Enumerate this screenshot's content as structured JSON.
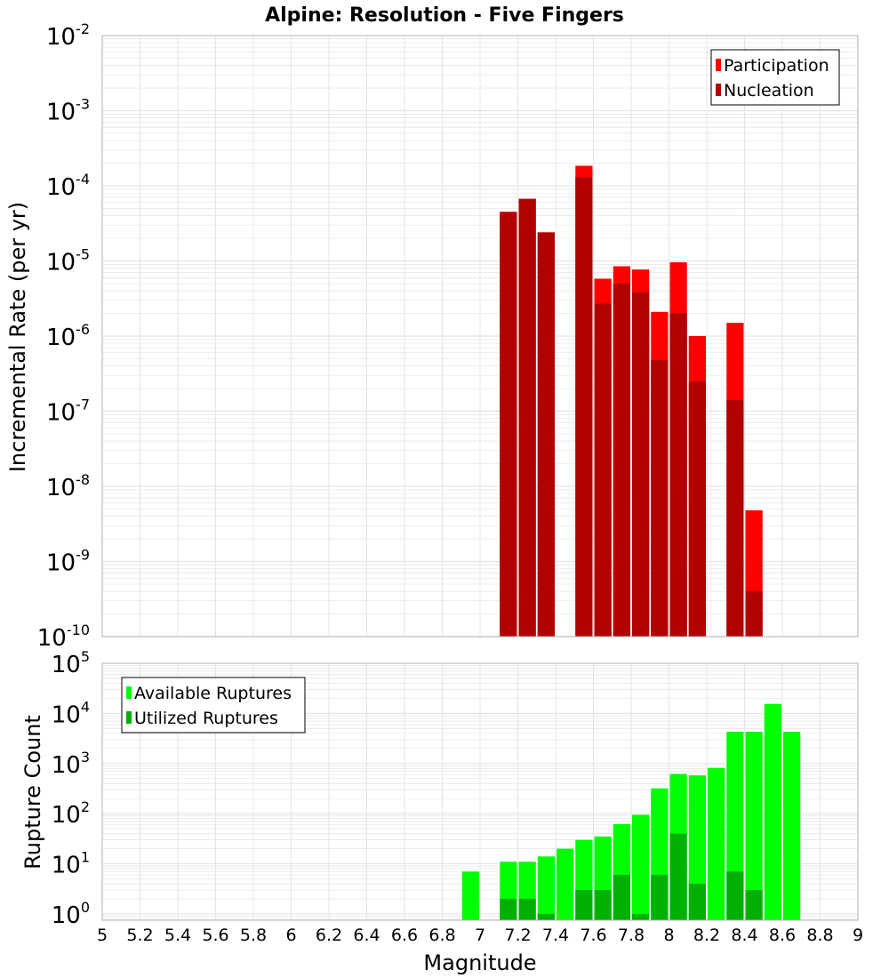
{
  "title": "Alpine: Resolution - Five Fingers",
  "colors": {
    "participation": "#ff0000",
    "nucleation": "#b00000",
    "available": "#00ff00",
    "utilized": "#00b000",
    "grid": "#e4e4e4",
    "frame": "#b0b0b0"
  },
  "chart_data": [
    {
      "type": "bar",
      "name": "rate-panel",
      "ylabel": "Incremental Rate (per yr)",
      "yscale": "log",
      "ylim": [
        1e-10,
        0.01
      ],
      "ytick_exponents": [
        "-10",
        "-9",
        "-8",
        "-7",
        "-6",
        "-5",
        "-4",
        "-3",
        "-2"
      ],
      "xlim": [
        5,
        9
      ],
      "bin_width": 0.1,
      "legend": "top-right",
      "series": [
        {
          "name": "Participation",
          "color_key": "participation",
          "x": [
            7.15,
            7.25,
            7.35,
            7.55,
            7.65,
            7.75,
            7.85,
            7.95,
            8.05,
            8.15,
            8.35,
            8.45
          ],
          "values": [
            4.5e-05,
            6.7e-05,
            2.4e-05,
            0.000185,
            5.8e-06,
            8.5e-06,
            7.7e-06,
            2.1e-06,
            9.6e-06,
            1e-06,
            1.5e-06,
            4.8e-09
          ]
        },
        {
          "name": "Nucleation",
          "color_key": "nucleation",
          "x": [
            7.15,
            7.25,
            7.35,
            7.55,
            7.65,
            7.75,
            7.85,
            7.95,
            8.05,
            8.15,
            8.35,
            8.45
          ],
          "values": [
            4.5e-05,
            6.7e-05,
            2.4e-05,
            0.00013,
            2.7e-06,
            5e-06,
            3.8e-06,
            4.8e-07,
            2e-06,
            2.5e-07,
            1.4e-07,
            4e-10
          ]
        }
      ]
    },
    {
      "type": "bar",
      "name": "count-panel",
      "xlabel": "Magnitude",
      "ylabel": "Rupture Count",
      "yscale": "log",
      "ylim": [
        0.75,
        100000
      ],
      "ytick_exponents": [
        "0",
        "1",
        "2",
        "3",
        "4",
        "5"
      ],
      "xlim": [
        5,
        9
      ],
      "xticks": [
        "5",
        "5.2",
        "5.4",
        "5.6",
        "5.8",
        "6",
        "6.2",
        "6.4",
        "6.6",
        "6.8",
        "7",
        "7.2",
        "7.4",
        "7.6",
        "7.8",
        "8",
        "8.2",
        "8.4",
        "8.6",
        "8.8",
        "9"
      ],
      "bin_width": 0.1,
      "legend": "top-left",
      "series": [
        {
          "name": "Available Ruptures",
          "color_key": "available",
          "x": [
            6.95,
            7.15,
            7.25,
            7.35,
            7.45,
            7.55,
            7.65,
            7.75,
            7.85,
            7.95,
            8.05,
            8.15,
            8.25,
            8.35,
            8.45,
            8.55,
            8.65
          ],
          "values": [
            7,
            11,
            11,
            14,
            20,
            30,
            35,
            62,
            95,
            320,
            620,
            580,
            820,
            4300,
            4300,
            15500,
            4300
          ]
        },
        {
          "name": "Utilized Ruptures",
          "color_key": "utilized",
          "x": [
            7.15,
            7.25,
            7.35,
            7.55,
            7.65,
            7.75,
            7.85,
            7.95,
            8.05,
            8.15,
            8.35,
            8.45
          ],
          "values": [
            2,
            2,
            1,
            3,
            3,
            6,
            1,
            6,
            40,
            4,
            7,
            3
          ]
        }
      ]
    }
  ]
}
